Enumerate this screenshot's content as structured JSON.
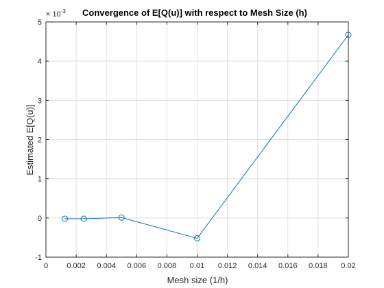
{
  "chart_data": {
    "type": "line",
    "title": "Convergence of E[Q(u)] with respect to Mesh Size (h)",
    "xlabel": "Mesh size (1/h)",
    "ylabel": "Estimated E[Q(u)]",
    "exponent_label": "× 10",
    "exponent_power": "-3",
    "xlim": [
      0,
      0.02
    ],
    "ylim": [
      -1,
      5
    ],
    "x_ticks": [
      0,
      0.002,
      0.004,
      0.006,
      0.008,
      0.01,
      0.012,
      0.014,
      0.016,
      0.018,
      0.02
    ],
    "x_tick_labels": [
      "0",
      "0.002",
      "0.004",
      "0.006",
      "0.008",
      "0.01",
      "0.012",
      "0.014",
      "0.016",
      "0.018",
      "0.02"
    ],
    "y_ticks": [
      -1,
      0,
      1,
      2,
      3,
      4,
      5
    ],
    "y_tick_labels": [
      "-1",
      "0",
      "1",
      "2",
      "3",
      "4",
      "5"
    ],
    "grid": true,
    "series": [
      {
        "color": "#0072BD",
        "marker": "circle",
        "x": [
          0.00125,
          0.0025,
          0.005,
          0.01,
          0.02
        ],
        "y": [
          -0.02,
          -0.02,
          0.01,
          -0.52,
          4.67
        ]
      }
    ]
  }
}
